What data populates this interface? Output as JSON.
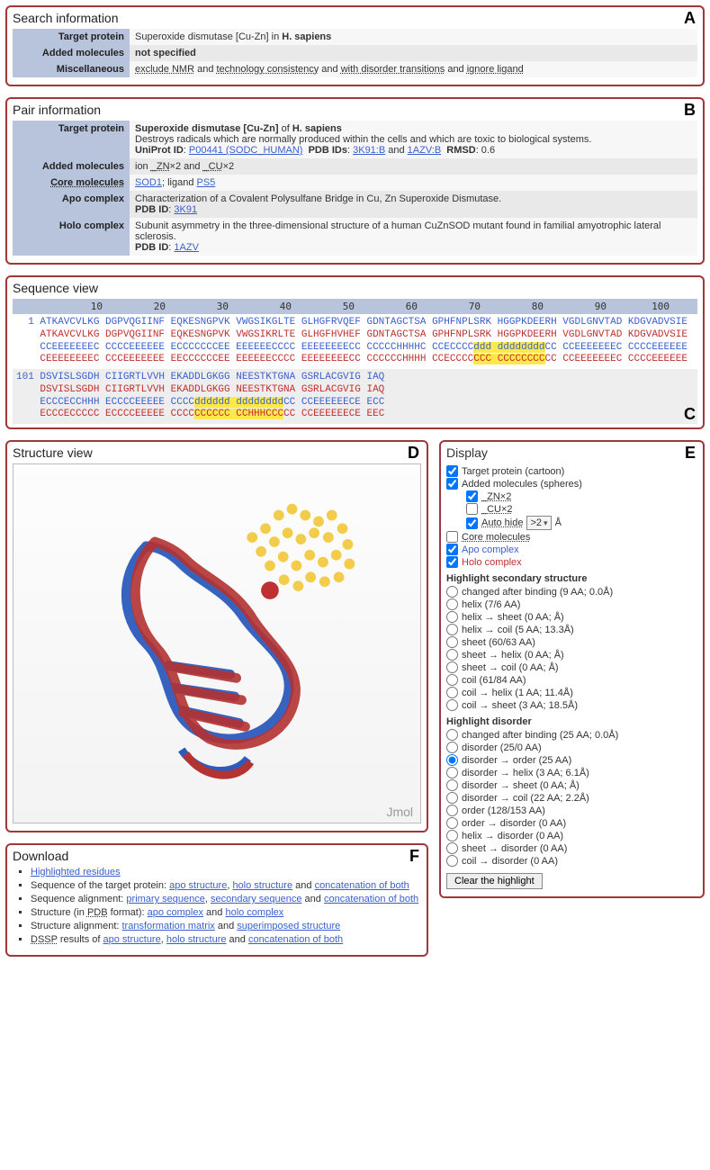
{
  "letters": {
    "A": "A",
    "B": "B",
    "C": "C",
    "D": "D",
    "E": "E",
    "F": "F"
  },
  "search": {
    "title": "Search information",
    "rows": [
      {
        "key": "Target protein",
        "val_html": "Superoxide dismutase [Cu-Zn] in <b>H. sapiens</b>"
      },
      {
        "key": "Added molecules",
        "val_html": "<b>not specified</b>"
      },
      {
        "key": "Miscellaneous",
        "val_html": "<span class='dotu'>exclude NMR</span> and <span class='dotu'>technology consistency</span> and <span class='dotu'>with disorder transitions</span> and <span class='dotu'>ignore ligand</span>"
      }
    ]
  },
  "pair": {
    "title": "Pair information",
    "rows": [
      {
        "key": "Target protein",
        "val_html": "<b>Superoxide dismutase [Cu-Zn]</b> of <b>H. sapiens</b><br>Destroys radicals which are normally produced within the cells and which are toxic to biological systems.<br><b>UniProt ID</b>: <a>P00441 (SODC_HUMAN)</a>&nbsp;&nbsp;<b>PDB IDs</b>: <a>3K91:B</a> and <a>1AZV:B</a>&nbsp;&nbsp;<b>RMSD</b>: 0.6"
      },
      {
        "key": "Added molecules",
        "val_html": "ion <span class='dotu'>_ZN</span>×2 and <span class='dotu'>_CU</span>×2"
      },
      {
        "key": "Core molecules",
        "key_dot": true,
        "val_html": "<a>SOD1</a>; ligand <a>PS5</a>"
      },
      {
        "key": "Apo complex",
        "val_html": "Characterization of a Covalent Polysulfane Bridge in Cu, Zn Superoxide Dismutase.<br><b>PDB ID</b>: <a>3K91</a>"
      },
      {
        "key": "Holo complex",
        "val_html": "Subunit asymmetry in the three-dimensional structure of a human CuZnSOD mutant found in familial amyotrophic lateral sclerosis.<br><b>PDB ID</b>: <a>1AZV</a>"
      }
    ]
  },
  "sequence": {
    "title": "Sequence view",
    "ruler": [
      "10",
      "20",
      "30",
      "40",
      "50",
      "60",
      "70",
      "80",
      "90",
      "100"
    ],
    "row1_prefix": "1",
    "row2_prefix": "101",
    "block1": {
      "blue": "ATKAVCVLKG DGPVQGIINF EQKESNGPVK VWGSIKGLTE GLHGFRVQEF GDNTAGCTSA GPHFNPLSRK HGGPKDEERH VGDLGNVTAD KDGVADVSIE",
      "red": "ATKAVCVLKG DGPVQGIINF EQKESNGPVK VWGSIKRLTE GLHGFHVHEF GDNTAGCTSA GPHFNPLSRK HGGPKDEERH VGDLGNVTAD KDGVADVSIE",
      "ss1": "CCEEEEEEEC CCCCEEEEEE ECCCCCCCEE EEEEEECCCC EEEEEEEECC CCCCCHHHHC CCECCCC",
      "ss1_hl": "ddd dddddddd",
      "ss1_tail": "CC CCEEEEEEEC CCCCEEEEEE",
      "ss2": "CEEEEEEEEC CCCEEEEEEE EECCCCCCEE EEEEEECCCC EEEEEEEECC CCCCCCHHHH CCECCCC",
      "ss2_hl": "CCC CCCCCCCC",
      "ss2_tail": "CC CCEEEEEEEC CCCCEEEEEE"
    },
    "block2": {
      "blue": "DSVISLSGDH CIIGRTLVVH EKADDLGKGG NEESTKTGNA GSRLACGVIG IAQ",
      "red": "DSVISLSGDH CIIGRTLVVH EKADDLGKGG NEESTKTGNA GSRLACGVIG IAQ",
      "ss1": "ECCCECCHHH ECCCCEEEEE CCCC",
      "ss1_hl": "dddddd dddddddd",
      "ss1_tail": "CC CCEEEEEECE ECC",
      "ss2": "ECCCECCCCC ECCCCEEEEE CCCC",
      "ss2_hl": "CCCCCC CCHHHCCC",
      "ss2_tail": "CC CCEEEEEECE EEC"
    }
  },
  "structure": {
    "title": "Structure view",
    "jmol": "Jmol"
  },
  "display": {
    "title": "Display",
    "top": [
      {
        "type": "cb",
        "checked": true,
        "label": "Target protein (cartoon)"
      },
      {
        "type": "cb",
        "checked": true,
        "label": "Added molecules (spheres)"
      },
      {
        "type": "cb",
        "checked": true,
        "label": "_ZN×2",
        "indent": 1,
        "dot": true
      },
      {
        "type": "cb",
        "checked": false,
        "label": "_CU×2",
        "indent": 1,
        "dot": true
      },
      {
        "type": "cb-sel",
        "checked": true,
        "label": "Auto hide",
        "sel": ">2",
        "unit": "Å",
        "indent": 1,
        "dot": true
      },
      {
        "type": "cb",
        "checked": false,
        "label": "Core molecules",
        "dot": true
      },
      {
        "type": "cb",
        "checked": true,
        "label": "Apo complex",
        "cls": "lbl-blue"
      },
      {
        "type": "cb",
        "checked": true,
        "label": "Holo complex",
        "cls": "lbl-red"
      }
    ],
    "ss_head": "Highlight secondary structure",
    "ss": [
      "changed after binding (9 AA; 0.0Å)",
      "helix (7/6 AA)",
      "helix → sheet (0 AA; Å)",
      "helix → coil (5 AA; 13.3Å)",
      "sheet (60/63 AA)",
      "sheet → helix (0 AA; Å)",
      "sheet → coil (0 AA; Å)",
      "coil (61/84 AA)",
      "coil → helix (1 AA; 11.4Å)",
      "coil → sheet (3 AA; 18.5Å)"
    ],
    "dis_head": "Highlight disorder",
    "dis": [
      {
        "label": "changed after binding (25 AA; 0.0Å)",
        "checked": false
      },
      {
        "label": "disorder (25/0 AA)",
        "checked": false
      },
      {
        "label": "disorder → order (25 AA)",
        "checked": true
      },
      {
        "label": "disorder → helix (3 AA; 6.1Å)",
        "checked": false
      },
      {
        "label": "disorder → sheet (0 AA; Å)",
        "checked": false
      },
      {
        "label": "disorder → coil (22 AA; 2.2Å)",
        "checked": false
      },
      {
        "label": "order (128/153 AA)",
        "checked": false
      },
      {
        "label": "order → disorder (0 AA)",
        "checked": false
      },
      {
        "label": "helix → disorder (0 AA)",
        "checked": false
      },
      {
        "label": "sheet → disorder (0 AA)",
        "checked": false
      },
      {
        "label": "coil → disorder (0 AA)",
        "checked": false
      }
    ],
    "clear": "Clear the highlight"
  },
  "download": {
    "title": "Download",
    "items": [
      "<a>Highlighted residues</a>",
      "Sequence of the target protein: <a>apo structure</a>, <a>holo structure</a> and <a>concatenation of both</a>",
      "Sequence alignment: <a>primary sequence</a>, <a>secondary sequence</a> and <a>concatenation of both</a>",
      "Structure (in <span class='dotu'>PDB</span> format): <a>apo complex</a> and <a>holo complex</a>",
      "Structure alignment: <a>transformation matrix</a> and <a>superimposed structure</a>",
      "<span class='dotu'>DSSP</span> results of <a>apo structure</a>, <a>holo structure</a> and <a>concatenation of both</a>"
    ]
  },
  "colors": {
    "panel_border": "#a03838",
    "key_bg": "#b8c4db",
    "highlight": "#ffe94a",
    "seq_blue": "#3a5fcd",
    "seq_red": "#c03030"
  }
}
